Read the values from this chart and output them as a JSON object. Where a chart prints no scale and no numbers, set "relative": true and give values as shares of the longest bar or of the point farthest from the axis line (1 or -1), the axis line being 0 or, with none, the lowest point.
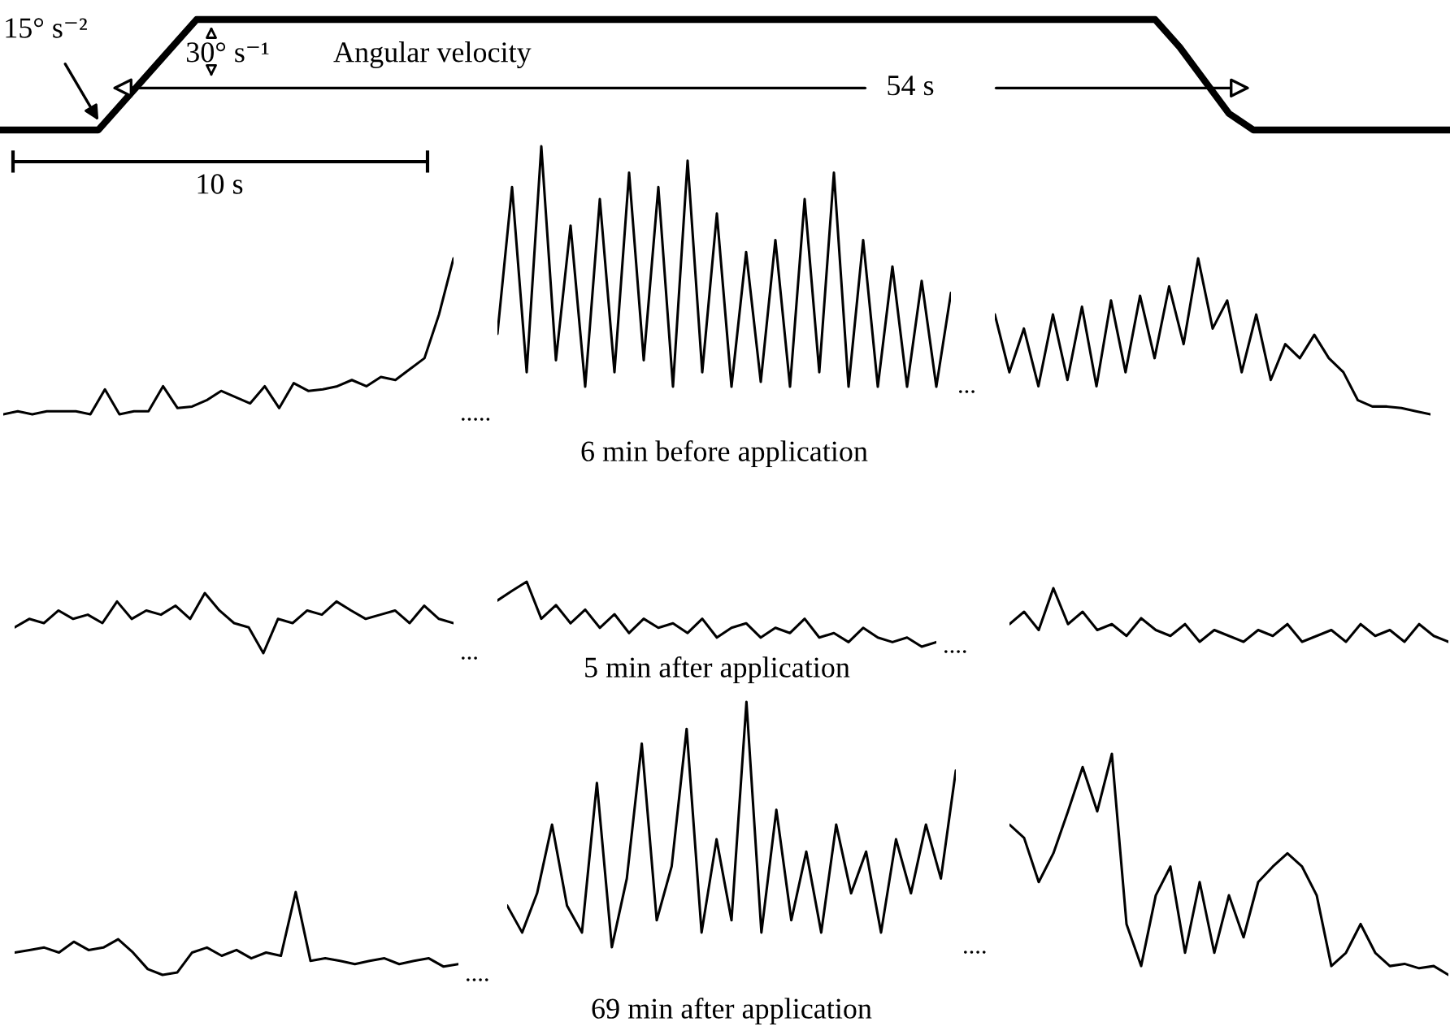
{
  "chart_data": [
    {
      "type": "line",
      "relative": true,
      "categories": [
        null,
        null,
        null,
        null,
        null,
        null,
        null,
        null,
        null,
        null,
        null,
        null,
        null,
        null,
        null,
        null,
        null,
        null,
        null,
        null,
        null,
        null,
        null,
        null,
        null,
        null,
        null,
        null,
        null,
        null,
        null,
        null,
        null,
        null,
        null,
        null,
        null,
        null,
        null,
        null,
        null,
        null,
        null,
        null,
        null,
        null,
        null,
        null,
        null,
        null,
        null,
        null,
        null,
        null,
        null,
        null,
        null,
        null,
        null,
        null
      ],
      "series": [
        {
          "color": "#000000",
          "values": [
            0,
            0,
            0,
            0,
            0,
            0.25,
            0.5,
            0.75,
            1,
            1,
            1,
            1,
            1,
            1,
            1,
            1,
            1,
            1,
            1,
            1,
            1,
            1,
            1,
            1,
            1,
            1,
            1,
            1,
            1,
            1,
            1,
            1,
            1,
            1,
            1,
            1,
            1,
            1,
            1,
            1,
            1,
            1,
            1,
            1,
            1,
            1,
            1,
            1,
            0.75,
            0.45,
            0.15,
            0,
            0,
            0,
            0,
            0,
            0,
            0,
            0,
            0
          ]
        }
      ],
      "annotations": [
        "15° s⁻²",
        "30° s⁻¹",
        "Angular velocity",
        "54 s"
      ]
    },
    {
      "type": "line",
      "relative": true,
      "categories": [
        null,
        null,
        null,
        null,
        null,
        null,
        null,
        null,
        null,
        null,
        null,
        null,
        null,
        null,
        null,
        null,
        null,
        null,
        null,
        null,
        null,
        null,
        null,
        null,
        null,
        null,
        null,
        null,
        null,
        null,
        null,
        null
      ],
      "series": [
        {
          "color": "#000000",
          "values": [
            0,
            0.02,
            0,
            0.02,
            0.02,
            0.02,
            0,
            0.16,
            0,
            0.02,
            0.02,
            0.18,
            0.04,
            0.05,
            0.09,
            0.15,
            0.11,
            0.07,
            0.18,
            0.04,
            0.2,
            0.15,
            0.16,
            0.18,
            0.22,
            0.18,
            0.24,
            0.22,
            0.29,
            0.36,
            0.64,
            1
          ]
        }
      ],
      "annotations": [
        "10 s",
        "....."
      ]
    },
    {
      "type": "line",
      "relative": true,
      "categories": [
        null,
        null,
        null,
        null,
        null,
        null,
        null,
        null,
        null,
        null,
        null,
        null,
        null,
        null,
        null,
        null,
        null,
        null,
        null,
        null,
        null,
        null,
        null,
        null,
        null,
        null,
        null,
        null,
        null,
        null,
        null,
        null
      ],
      "series": [
        {
          "color": "#000000",
          "values": [
            0.22,
            0.83,
            0.06,
            1,
            0.11,
            0.67,
            0,
            0.78,
            0.06,
            0.89,
            0.11,
            0.83,
            0,
            0.94,
            0.06,
            0.72,
            0,
            0.56,
            0.02,
            0.61,
            0,
            0.78,
            0.06,
            0.89,
            0,
            0.61,
            0,
            0.5,
            0,
            0.44,
            0,
            0.39
          ]
        }
      ],
      "xlabel": "6 min before application",
      "annotations": [
        "..."
      ]
    },
    {
      "type": "line",
      "relative": true,
      "categories": [
        null,
        null,
        null,
        null,
        null,
        null,
        null,
        null,
        null,
        null,
        null,
        null,
        null,
        null,
        null,
        null,
        null,
        null,
        null,
        null,
        null,
        null,
        null,
        null,
        null,
        null,
        null,
        null,
        null,
        null,
        null
      ],
      "series": [
        {
          "color": "#000000",
          "values": [
            0.64,
            0.27,
            0.55,
            0.18,
            0.64,
            0.22,
            0.69,
            0.18,
            0.73,
            0.27,
            0.76,
            0.36,
            0.82,
            0.45,
            1,
            0.55,
            0.73,
            0.27,
            0.64,
            0.22,
            0.45,
            0.36,
            0.51,
            0.36,
            0.27,
            0.09,
            0.05,
            0.05,
            0.04,
            0.02,
            0
          ]
        }
      ]
    },
    {
      "type": "line",
      "relative": true,
      "categories": [
        null,
        null,
        null,
        null,
        null,
        null,
        null,
        null,
        null,
        null,
        null,
        null,
        null,
        null,
        null,
        null,
        null,
        null,
        null,
        null,
        null,
        null,
        null,
        null,
        null,
        null,
        null,
        null,
        null,
        null,
        null
      ],
      "series": [
        {
          "color": "#000000",
          "values": [
            0.43,
            0.57,
            0.5,
            0.71,
            0.57,
            0.64,
            0.5,
            0.86,
            0.57,
            0.71,
            0.64,
            0.79,
            0.57,
            1,
            0.71,
            0.5,
            0.43,
            0,
            0.57,
            0.5,
            0.71,
            0.64,
            0.86,
            0.71,
            0.57,
            0.64,
            0.71,
            0.5,
            0.79,
            0.57,
            0.5
          ]
        }
      ],
      "annotations": [
        "..."
      ]
    },
    {
      "type": "line",
      "relative": true,
      "categories": [
        null,
        null,
        null,
        null,
        null,
        null,
        null,
        null,
        null,
        null,
        null,
        null,
        null,
        null,
        null,
        null,
        null,
        null,
        null,
        null,
        null,
        null,
        null,
        null,
        null,
        null,
        null,
        null,
        null,
        null,
        null
      ],
      "series": [
        {
          "color": "#000000",
          "values": [
            0.71,
            0.86,
            1,
            0.43,
            0.64,
            0.36,
            0.57,
            0.29,
            0.5,
            0.21,
            0.43,
            0.29,
            0.36,
            0.21,
            0.43,
            0.14,
            0.29,
            0.36,
            0.14,
            0.29,
            0.21,
            0.43,
            0.14,
            0.21,
            0.07,
            0.29,
            0.14,
            0.07,
            0.14,
            0,
            0.07
          ]
        }
      ],
      "xlabel": "5 min after application",
      "annotations": [
        "...."
      ]
    },
    {
      "type": "line",
      "relative": true,
      "categories": [
        null,
        null,
        null,
        null,
        null,
        null,
        null,
        null,
        null,
        null,
        null,
        null,
        null,
        null,
        null,
        null,
        null,
        null,
        null,
        null,
        null,
        null,
        null,
        null,
        null,
        null,
        null,
        null,
        null,
        null,
        null
      ],
      "series": [
        {
          "color": "#000000",
          "values": [
            0.33,
            0.56,
            0.22,
            1,
            0.33,
            0.56,
            0.22,
            0.33,
            0.11,
            0.44,
            0.22,
            0.11,
            0.33,
            0,
            0.22,
            0.11,
            0,
            0.22,
            0.11,
            0.33,
            0,
            0.11,
            0.22,
            0,
            0.33,
            0.11,
            0.22,
            0,
            0.33,
            0.11,
            0
          ]
        }
      ]
    },
    {
      "type": "line",
      "relative": true,
      "categories": [
        null,
        null,
        null,
        null,
        null,
        null,
        null,
        null,
        null,
        null,
        null,
        null,
        null,
        null,
        null,
        null,
        null,
        null,
        null,
        null,
        null,
        null,
        null,
        null,
        null,
        null,
        null,
        null,
        null,
        null,
        null
      ],
      "series": [
        {
          "color": "#000000",
          "values": [
            0.27,
            0.3,
            0.33,
            0.27,
            0.4,
            0.3,
            0.33,
            0.43,
            0.27,
            0.07,
            0,
            0.03,
            0.27,
            0.33,
            0.23,
            0.3,
            0.2,
            0.27,
            0.23,
            1,
            0.17,
            0.2,
            0.17,
            0.13,
            0.17,
            0.2,
            0.13,
            0.17,
            0.2,
            0.1,
            0.13
          ]
        }
      ],
      "annotations": [
        "...."
      ]
    },
    {
      "type": "line",
      "relative": true,
      "categories": [
        null,
        null,
        null,
        null,
        null,
        null,
        null,
        null,
        null,
        null,
        null,
        null,
        null,
        null,
        null,
        null,
        null,
        null,
        null,
        null,
        null,
        null,
        null,
        null,
        null,
        null,
        null,
        null,
        null,
        null,
        null
      ],
      "series": [
        {
          "color": "#000000",
          "values": [
            0.17,
            0.06,
            0.22,
            0.5,
            0.17,
            0.06,
            0.67,
            0,
            0.28,
            0.83,
            0.11,
            0.33,
            0.89,
            0.06,
            0.44,
            0.11,
            1,
            0.06,
            0.56,
            0.11,
            0.39,
            0.06,
            0.5,
            0.22,
            0.39,
            0.06,
            0.44,
            0.22,
            0.5,
            0.28,
            0.72
          ]
        }
      ],
      "xlabel": "69 min after application",
      "annotations": [
        "...."
      ]
    },
    {
      "type": "line",
      "relative": true,
      "categories": [
        null,
        null,
        null,
        null,
        null,
        null,
        null,
        null,
        null,
        null,
        null,
        null,
        null,
        null,
        null,
        null,
        null,
        null,
        null,
        null,
        null,
        null,
        null,
        null,
        null,
        null,
        null,
        null,
        null,
        null,
        null
      ],
      "series": [
        {
          "color": "#000000",
          "values": [
            0.68,
            0.62,
            0.42,
            0.55,
            0.74,
            0.94,
            0.74,
            1,
            0.23,
            0.04,
            0.36,
            0.49,
            0.1,
            0.42,
            0.1,
            0.36,
            0.17,
            0.42,
            0.49,
            0.55,
            0.49,
            0.36,
            0.04,
            0.1,
            0.23,
            0.1,
            0.04,
            0.05,
            0.03,
            0.04,
            0
          ]
        }
      ]
    }
  ]
}
